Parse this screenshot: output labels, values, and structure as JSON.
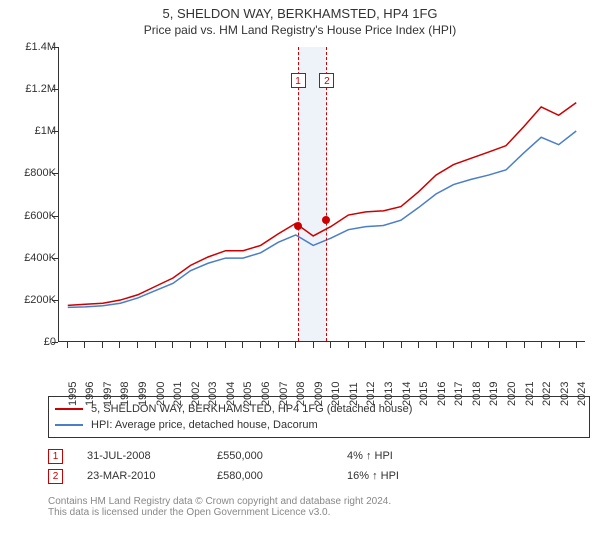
{
  "title_line1": "5, SHELDON WAY, BERKHAMSTED, HP4 1FG",
  "title_line2": "Price paid vs. HM Land Registry's House Price Index (HPI)",
  "chart": {
    "type": "line",
    "background_color": "#ffffff",
    "ylim": [
      0,
      1400000
    ],
    "ytick_step": 200000,
    "y_ticks": [
      "£0",
      "£200K",
      "£400K",
      "£600K",
      "£800K",
      "£1M",
      "£1.2M",
      "£1.4M"
    ],
    "x_years": [
      1995,
      1996,
      1997,
      1998,
      1999,
      2000,
      2001,
      2002,
      2003,
      2004,
      2005,
      2006,
      2007,
      2008,
      2009,
      2010,
      2011,
      2012,
      2013,
      2014,
      2015,
      2016,
      2017,
      2018,
      2019,
      2020,
      2021,
      2022,
      2023,
      2024
    ],
    "series": [
      {
        "name": "5, SHELDON WAY, BERKHAMSTED, HP4 1FG (detached house)",
        "color": "#cc0000",
        "line_width": 1.5,
        "values": [
          170,
          175,
          180,
          195,
          220,
          260,
          300,
          360,
          400,
          430,
          430,
          455,
          510,
          560,
          500,
          545,
          600,
          615,
          620,
          640,
          710,
          790,
          840,
          870,
          900,
          930,
          1020,
          1115,
          1075,
          1135
        ],
        "scale": 1000
      },
      {
        "name": "HPI: Average price, detached house, Dacorum",
        "color": "#4a7ec8",
        "line_width": 1.5,
        "values": [
          160,
          163,
          168,
          180,
          205,
          240,
          275,
          335,
          370,
          395,
          395,
          420,
          470,
          505,
          455,
          490,
          530,
          545,
          550,
          575,
          635,
          700,
          745,
          770,
          790,
          815,
          895,
          970,
          935,
          1000
        ],
        "scale": 1000
      }
    ],
    "sale_markers": [
      {
        "index": 1,
        "year_frac": 2008.58,
        "price": 550000,
        "color": "#cc0000"
      },
      {
        "index": 2,
        "year_frac": 2010.22,
        "price": 580000,
        "color": "#cc0000"
      }
    ],
    "band": {
      "from": 2008.58,
      "to": 2010.22,
      "fill": "#eef2f9"
    },
    "label_fontsize": 11
  },
  "legend": [
    {
      "color": "#cc0000",
      "label": "5, SHELDON WAY, BERKHAMSTED, HP4 1FG (detached house)"
    },
    {
      "color": "#4a7ec8",
      "label": "HPI: Average price, detached house, Dacorum"
    }
  ],
  "sales": [
    {
      "idx": "1",
      "date": "31-JUL-2008",
      "price": "£550,000",
      "delta": "4% ↑ HPI"
    },
    {
      "idx": "2",
      "date": "23-MAR-2010",
      "price": "£580,000",
      "delta": "16% ↑ HPI"
    }
  ],
  "footer_line1": "Contains HM Land Registry data © Crown copyright and database right 2024.",
  "footer_line2": "This data is licensed under the Open Government Licence v3.0."
}
